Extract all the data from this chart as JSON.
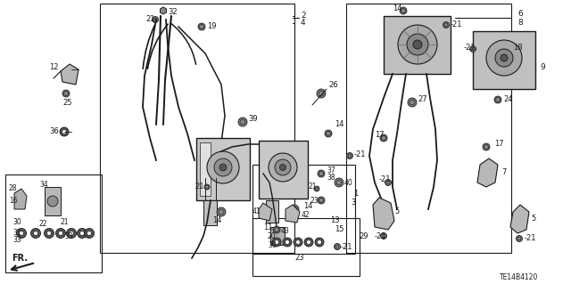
{
  "bg_color": "#ffffff",
  "line_color": "#1a1a1a",
  "diagram_id": "TE14B4120",
  "fig_w": 6.4,
  "fig_h": 3.19,
  "dpi": 100
}
